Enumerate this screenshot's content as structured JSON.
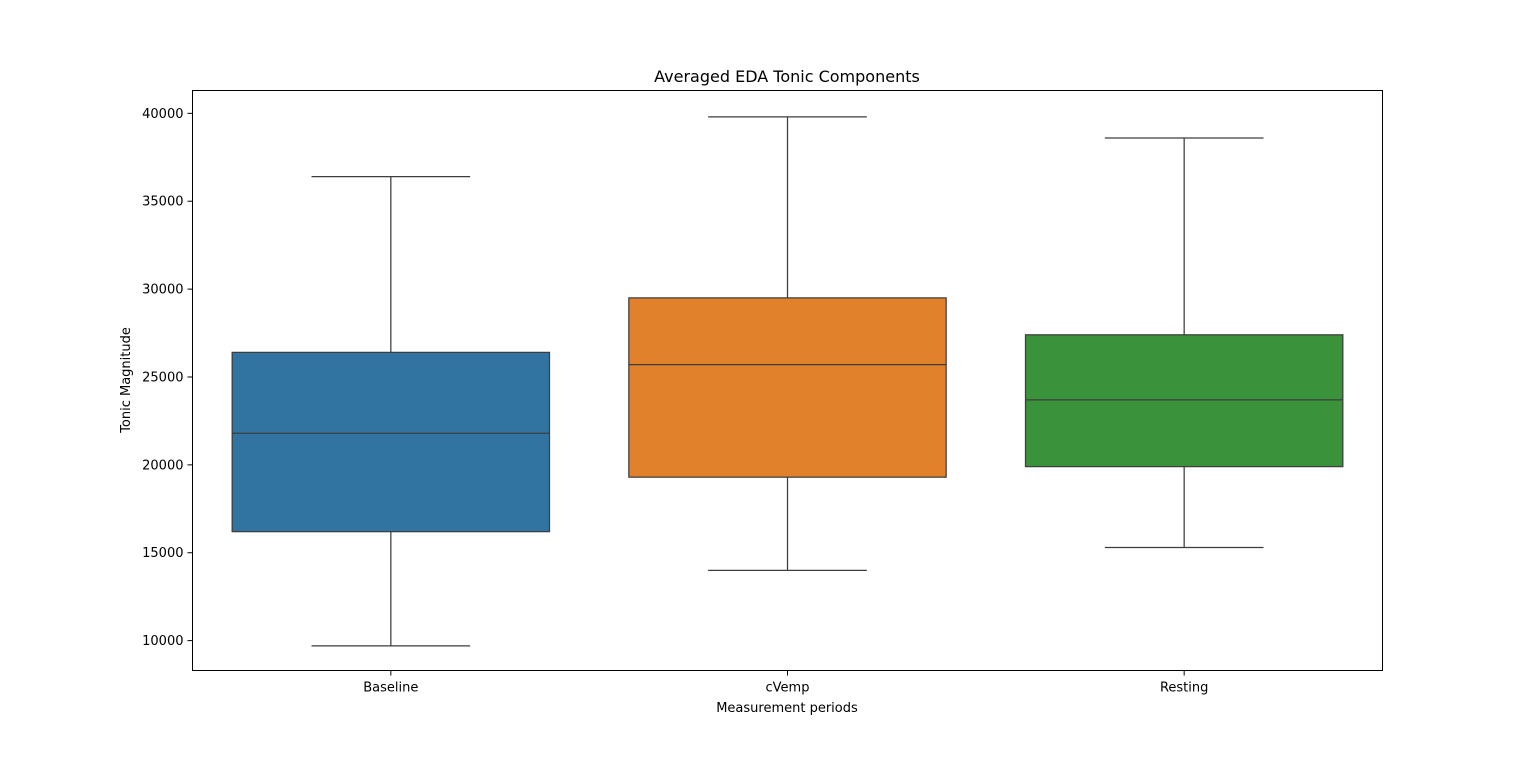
{
  "chart_data": {
    "type": "box",
    "title": "Averaged EDA Tonic Components",
    "xlabel": "Measurement periods",
    "ylabel": "Tonic Magnitude",
    "categories": [
      "Baseline",
      "cVemp",
      "Resting"
    ],
    "boxes": [
      {
        "category": "Baseline",
        "min": 9700,
        "q1": 16200,
        "median": 21800,
        "q3": 26400,
        "max": 36400,
        "color": "#3274a1"
      },
      {
        "category": "cVemp",
        "min": 14000,
        "q1": 19300,
        "median": 25700,
        "q3": 29500,
        "max": 39800,
        "color": "#e1812c"
      },
      {
        "category": "Resting",
        "min": 15300,
        "q1": 19900,
        "median": 23700,
        "q3": 27400,
        "max": 38600,
        "color": "#3a923a"
      }
    ],
    "yticks": [
      10000,
      15000,
      20000,
      25000,
      30000,
      35000,
      40000
    ],
    "ytick_labels": [
      "10000",
      "15000",
      "20000",
      "25000",
      "30000",
      "35000",
      "40000"
    ],
    "ylim": [
      8300,
      41300
    ],
    "grid": false,
    "legend": "none"
  }
}
